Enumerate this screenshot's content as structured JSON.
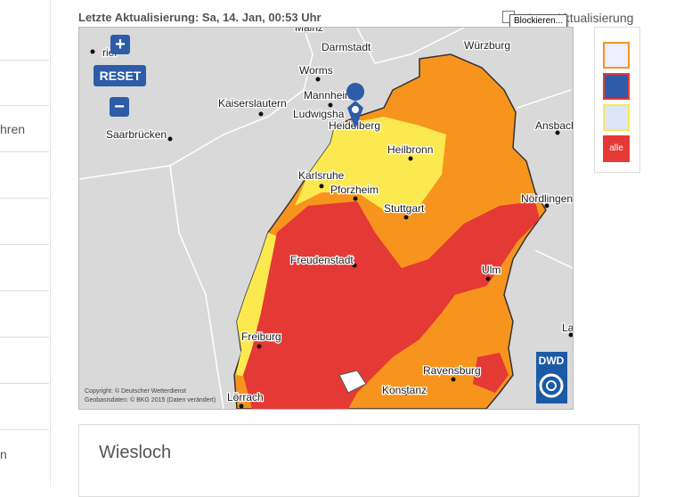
{
  "sidebar": {
    "items": [
      "hren",
      "n"
    ]
  },
  "header": {
    "last_update": "Letzte Aktualisierung: Sa, 14. Jan, 00:53 Uhr",
    "auto_update": "Auto-Aktualisierung",
    "tooltip": "Blockieren..."
  },
  "map": {
    "zoom_in": "+",
    "reset": "RESET",
    "zoom_out": "−",
    "cities": [
      "Mainz",
      "Darmstadt",
      "Würzburg",
      "rier",
      "Worms",
      "Kaiserslautern",
      "Mannheim",
      "Ludwigsha",
      "Heidelberg",
      "Saarbrücken",
      "Ansbach",
      "Heilbronn",
      "Karlsruhe",
      "Pforzheim",
      "Nördlingen",
      "Stuttgart",
      "Freudenstadt",
      "Ulm",
      "La",
      "Freiburg",
      "Ravensburg",
      "Konstanz",
      "Lörrach"
    ],
    "copyright": "Copyright: © Deutscher Wetterdienst",
    "geodata": "Geobasisdaten: © BKG 2015 (Daten verändert)",
    "logo": "DWD"
  },
  "legend": {
    "all": "alle"
  },
  "panel": {
    "title": "Wiesloch"
  }
}
